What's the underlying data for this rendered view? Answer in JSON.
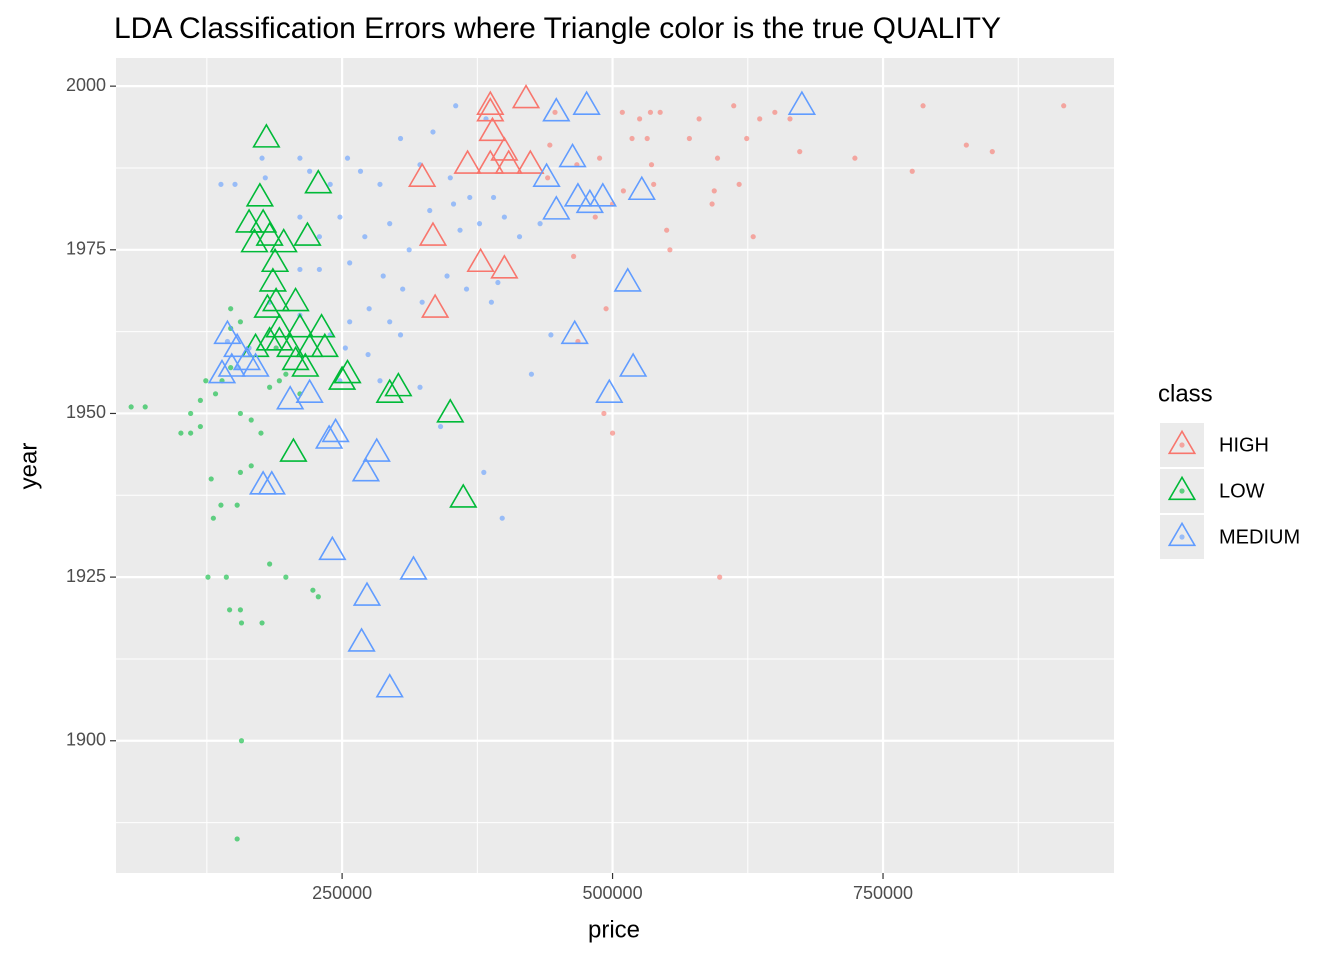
{
  "chart_data": {
    "type": "scatter",
    "title": "LDA Classification Errors where Triangle color is the true QUALITY",
    "x_label": "price",
    "y_label": "year",
    "legend_title": "class",
    "legend_position": "right",
    "xlim": [
      41000,
      963500
    ],
    "ylim": [
      1879.8,
      2004.3
    ],
    "xticks": [
      250000,
      500000,
      750000
    ],
    "yticks": [
      1900,
      1925,
      1950,
      1975,
      2000
    ],
    "grid": true,
    "series": [
      {
        "name": "HIGH",
        "color": "#F8766D",
        "x": [
          446800,
          442000,
          440000,
          492000,
          500000,
          599000,
          464000,
          468000,
          494000,
          500000,
          509000,
          525000,
          535000,
          544000,
          518000,
          532000,
          536000,
          538000,
          550000,
          553000,
          597000,
          612000,
          624000,
          636000,
          650000,
          664000,
          673000,
          630000,
          594000,
          592000,
          617000,
          724000,
          777000,
          787000,
          827000,
          851000,
          917000,
          484000,
          488000,
          467000,
          571000,
          580000,
          510000
        ],
        "y": [
          1996,
          1991,
          1986,
          1950,
          1947,
          1925,
          1974,
          1961,
          1966,
          1982,
          1996,
          1995,
          1996,
          1996,
          1992,
          1992,
          1988,
          1985,
          1978,
          1975,
          1989,
          1997,
          1992,
          1995,
          1996,
          1995,
          1990,
          1977,
          1984,
          1982,
          1985,
          1989,
          1987,
          1997,
          1991,
          1990,
          1997,
          1980,
          1989,
          1988,
          1992,
          1995,
          1984
        ],
        "error_x": [
          387000,
          387000,
          387000,
          420000,
          389000,
          400000,
          404000,
          424000,
          366000,
          400000,
          378000,
          334000,
          324000,
          336000
        ],
        "error_y": [
          1988,
          1997,
          1996,
          1998,
          1993,
          1990,
          1988,
          1988,
          1988,
          1972,
          1973,
          1977,
          1986,
          1966
        ]
      },
      {
        "name": "LOW",
        "color": "#00BA38",
        "x": [
          55000,
          68000,
          101000,
          110000,
          119000,
          124000,
          133000,
          139000,
          147000,
          156000,
          166000,
          175000,
          147000,
          156000,
          147000,
          129000,
          156000,
          166000,
          138000,
          131000,
          153000,
          126000,
          143000,
          146000,
          156000,
          157000,
          176000,
          183000,
          198000,
          223000,
          228000,
          157000,
          153000,
          183000,
          192000,
          211000,
          110000,
          119000,
          189000,
          198000
        ],
        "y": [
          1951,
          1951,
          1947,
          1950,
          1952,
          1955,
          1953,
          1955,
          1957,
          1950,
          1949,
          1947,
          1966,
          1964,
          1963,
          1940,
          1941,
          1942,
          1936,
          1934,
          1936,
          1925,
          1925,
          1920,
          1920,
          1918,
          1918,
          1927,
          1925,
          1923,
          1922,
          1900,
          1885,
          1954,
          1955,
          1953,
          1947,
          1948,
          1960,
          1956
        ],
        "error_x": [
          180000,
          174000,
          228000,
          164000,
          177000,
          218000,
          183000,
          169000,
          196000,
          188000,
          186000,
          207000,
          189000,
          181000,
          231000,
          211000,
          192000,
          183000,
          202000,
          220000,
          234000,
          170000,
          207000,
          216000,
          250000,
          255000,
          294000,
          302000,
          350000,
          362000,
          205000,
          192000
        ],
        "error_y": [
          1992,
          1983,
          1985,
          1979,
          1979,
          1977,
          1977,
          1976,
          1976,
          1973,
          1970,
          1967,
          1967,
          1966,
          1963,
          1963,
          1963,
          1961,
          1960,
          1960,
          1960,
          1960,
          1958,
          1957,
          1955,
          1956,
          1953,
          1954,
          1950,
          1937,
          1944,
          1961
        ]
      },
      {
        "name": "MEDIUM",
        "color": "#619CFF",
        "x": [
          176000,
          179000,
          138000,
          151000,
          211000,
          220000,
          239000,
          255000,
          267000,
          285000,
          304000,
          334000,
          355000,
          383000,
          322000,
          350000,
          368000,
          211000,
          229000,
          248000,
          271000,
          294000,
          312000,
          331000,
          359000,
          377000,
          400000,
          414000,
          433000,
          211000,
          229000,
          257000,
          288000,
          306000,
          324000,
          347000,
          365000,
          388000,
          394000,
          257000,
          275000,
          294000,
          304000,
          183000,
          211000,
          239000,
          253000,
          274000,
          248000,
          285000,
          322000,
          341000,
          381000,
          398000,
          425000,
          443000,
          154000,
          144000,
          164000,
          353000,
          390000
        ],
        "y": [
          1989,
          1986,
          1985,
          1985,
          1989,
          1987,
          1985,
          1989,
          1987,
          1985,
          1992,
          1993,
          1997,
          1995,
          1988,
          1986,
          1983,
          1980,
          1977,
          1980,
          1977,
          1979,
          1975,
          1981,
          1978,
          1979,
          1980,
          1977,
          1979,
          1972,
          1972,
          1973,
          1971,
          1969,
          1967,
          1971,
          1969,
          1967,
          1970,
          1964,
          1966,
          1964,
          1962,
          1967,
          1965,
          1962,
          1960,
          1959,
          1955,
          1955,
          1954,
          1948,
          1941,
          1934,
          1956,
          1962,
          1957,
          1961,
          1960,
          1982,
          1983
        ],
        "error_x": [
          476000,
          448000,
          675000,
          463000,
          439000,
          527000,
          468000,
          479000,
          491000,
          448000,
          514000,
          465000,
          519000,
          497000,
          272000,
          282000,
          244000,
          238000,
          185000,
          177000,
          241000,
          316000,
          273000,
          268000,
          294000,
          144000,
          153000,
          162000,
          170000,
          148000,
          139000,
          202000,
          220000
        ],
        "error_y": [
          1997,
          1996,
          1997,
          1989,
          1986,
          1984,
          1983,
          1982,
          1983,
          1981,
          1970,
          1962,
          1957,
          1953,
          1941,
          1944,
          1947,
          1946,
          1939,
          1939,
          1929,
          1926,
          1922,
          1915,
          1908,
          1962,
          1960,
          1958,
          1957,
          1957,
          1956,
          1952,
          1953
        ]
      }
    ]
  }
}
